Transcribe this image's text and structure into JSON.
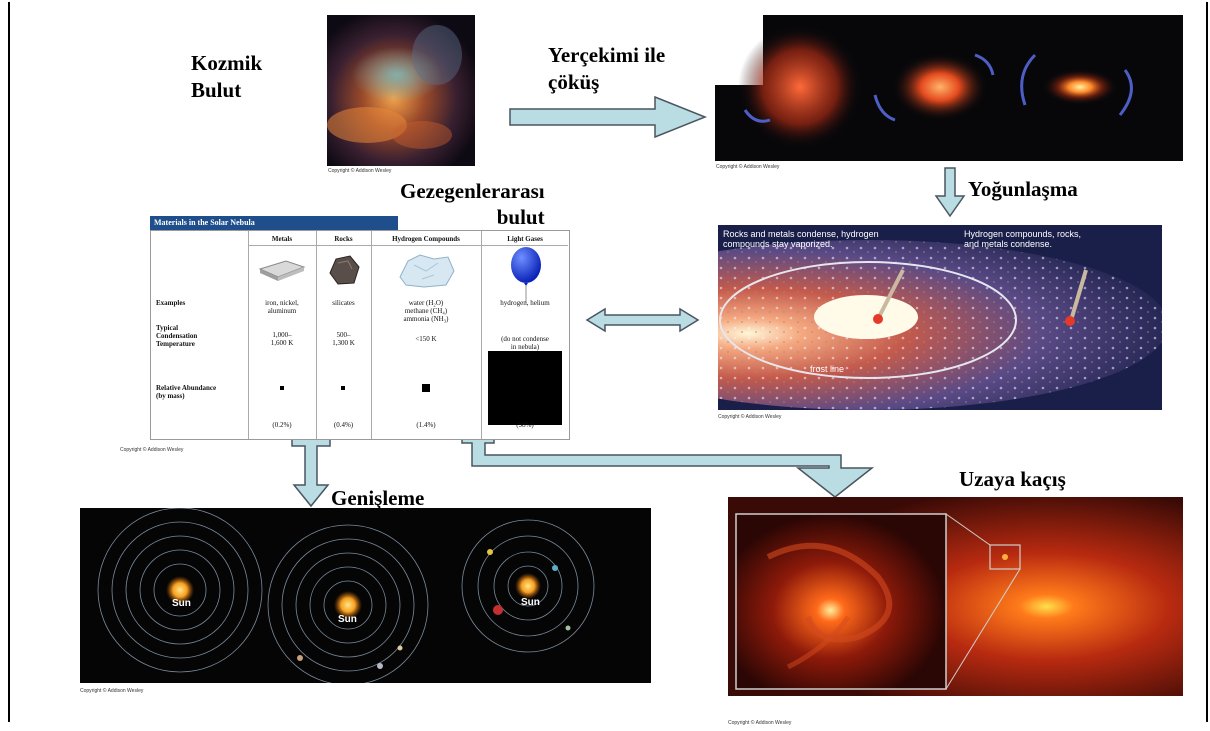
{
  "labels": {
    "cosmic_cloud": "Kozmik\nBulut",
    "gravity_collapse": "Yerçekimi ile\nçöküş",
    "condensation": "Yoğunlaşma",
    "nebula": "Gezegenlerarası\nbulut",
    "expansion": "Genişleme",
    "escape": "Uzaya kaçış"
  },
  "copyright": "Copyright © Addison Wesley",
  "table": {
    "title": "Materials in the Solar Nebula",
    "columns": [
      "Metals",
      "Rocks",
      "Hydrogen Compounds",
      "Light Gases"
    ],
    "row_labels": {
      "examples": "Examples",
      "temperature": "Typical\nCondensation\nTemperature",
      "abundance": "Relative Abundance\n(by mass)"
    },
    "examples": [
      "iron, nickel,\naluminum",
      "silicates",
      "water (H₂O)\nmethane (CH₄)\nammonia (NH₃)",
      "hydrogen, helium"
    ],
    "temperatures": [
      "1,000–\n1,600 K",
      "500–\n1,300 K",
      "<150 K",
      "(do not condense\nin nebula)"
    ],
    "percentages": [
      "(0.2%)",
      "(0.4%)",
      "(1.4%)",
      "(98%)"
    ],
    "abundance_fractions": [
      0.002,
      0.004,
      0.014,
      0.98
    ]
  },
  "condensation_panel": {
    "left_note": "Rocks and metals condense, hydrogen\ncompounds stay vaporized.",
    "right_note": "Hydrogen compounds, rocks,\nand metals condense.",
    "frost_line": "frost line"
  },
  "solar_systems": {
    "sun_label": "Sun"
  },
  "colors": {
    "arrow_fill": "#b9dde3",
    "arrow_stroke": "#4a5560",
    "table_header": "#1f4e8c"
  }
}
